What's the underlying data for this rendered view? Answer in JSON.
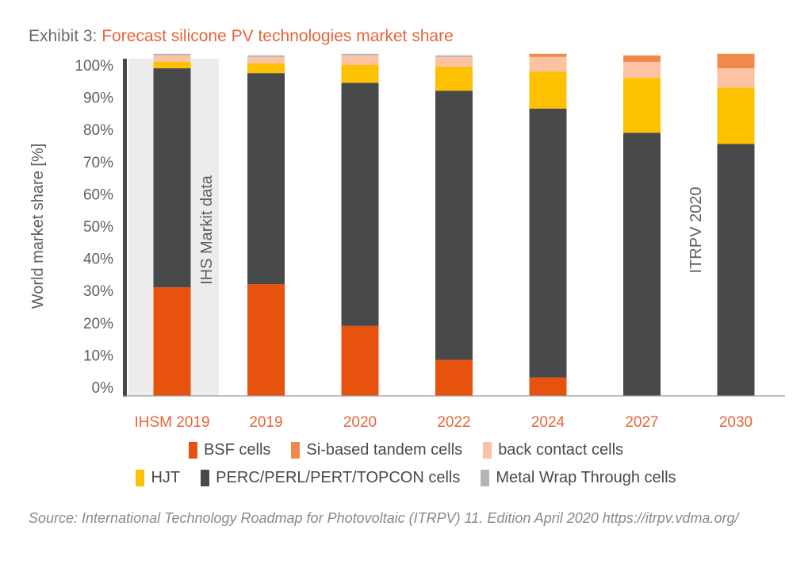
{
  "title": {
    "prefix": "Exhibit 3: ",
    "main": "Forecast silicone PV technologies market share"
  },
  "chart_data": {
    "type": "bar",
    "stacked": true,
    "categories": [
      "IHSM 2019",
      "2019",
      "2020",
      "2022",
      "2024",
      "2027",
      "2030"
    ],
    "ylabel": "World market share [%]",
    "ylim": [
      0,
      100
    ],
    "yticks": [
      "0%",
      "10%",
      "20%",
      "30%",
      "40%",
      "50%",
      "60%",
      "70%",
      "80%",
      "90%",
      "100%"
    ],
    "grid": false,
    "legend_position": "bottom",
    "series": [
      {
        "name": "BSF cells",
        "color": "#e8520f",
        "values": [
          31,
          32,
          19,
          8.5,
          3,
          0,
          0
        ]
      },
      {
        "name": "PERC/PERL/PERT/TOPCON cells",
        "color": "#48494b",
        "values": [
          68,
          65.5,
          75.5,
          83.5,
          83.5,
          79,
          75.5
        ]
      },
      {
        "name": "HJT",
        "color": "#fdc100",
        "values": [
          2,
          3,
          5.5,
          7.5,
          11.5,
          17,
          17.5
        ]
      },
      {
        "name": "back contact cells",
        "color": "#fbc3a2",
        "values": [
          2,
          2,
          3,
          3,
          4.5,
          5,
          6
        ]
      },
      {
        "name": "Si-based tandem cells",
        "color": "#f08a4b",
        "values": [
          0,
          0,
          0,
          0,
          1,
          2,
          4.5
        ]
      },
      {
        "name": "Metal Wrap Through cells",
        "color": "#b5b5b5",
        "values": [
          0.5,
          0.5,
          0.5,
          0.5,
          0,
          0,
          0
        ]
      }
    ],
    "annotations": [
      {
        "text": "IHS Markit data",
        "category": "IHSM 2019"
      },
      {
        "text": "ITRPV 2020",
        "category": "2030"
      }
    ],
    "shaded_region": {
      "category": "IHSM 2019",
      "color": "#ececec"
    }
  },
  "legend": {
    "rows": [
      [
        {
          "name": "BSF cells",
          "color": "#e8520f"
        },
        {
          "name": "Si-based tandem cells",
          "color": "#f08a4b"
        },
        {
          "name": "back contact cells",
          "color": "#fbc3a2"
        }
      ],
      [
        {
          "name": "HJT",
          "color": "#fdc100"
        },
        {
          "name": "PERC/PERL/PERT/TOPCON cells",
          "color": "#48494b"
        },
        {
          "name": "Metal Wrap Through cells",
          "color": "#b5b5b5"
        }
      ]
    ]
  },
  "source": "Source: International Technology Roadmap for Photovoltaic (ITRPV) 11. Edition April 2020 https://itrpv.vdma.org/"
}
